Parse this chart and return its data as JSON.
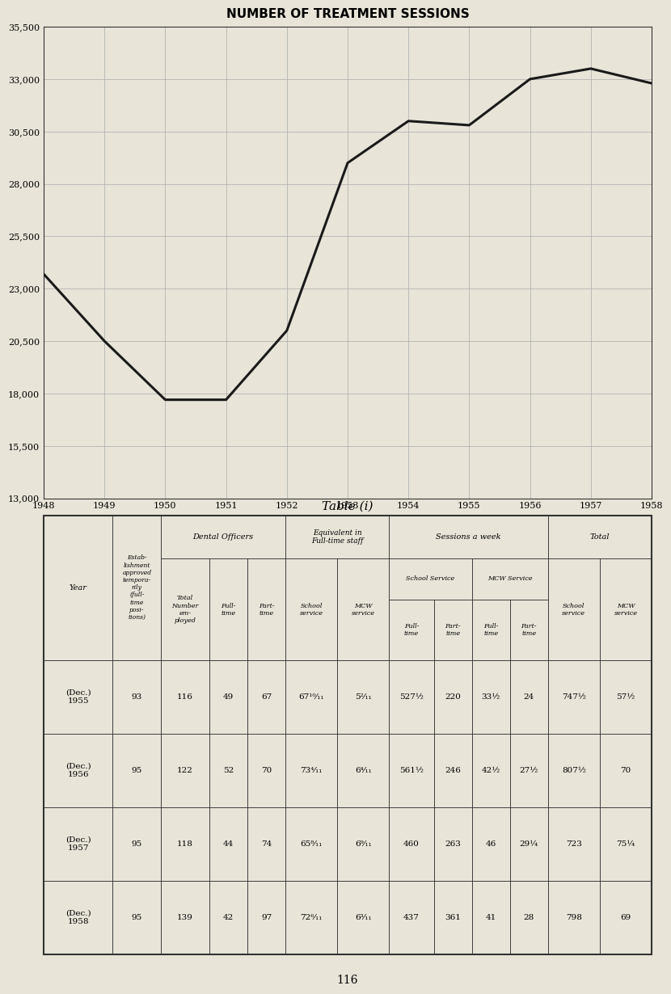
{
  "title": "NUMBER OF TREATMENT SESSIONS",
  "table_title": "Table (i)",
  "bg_color": "#e8e4d8",
  "line_color": "#1a1a1a",
  "line_width": 2.2,
  "years": [
    1948,
    1949,
    1950,
    1951,
    1952,
    1953,
    1954,
    1955,
    1956,
    1957,
    1958
  ],
  "values": [
    23700,
    20500,
    17700,
    17700,
    21000,
    29000,
    31000,
    30800,
    33000,
    33500,
    32800
  ],
  "yticks": [
    13000,
    15500,
    18000,
    20500,
    23000,
    25500,
    28000,
    30500,
    33000,
    35500
  ],
  "ylim": [
    13000,
    35500
  ],
  "xticks": [
    1948,
    1949,
    1950,
    1951,
    1952,
    1953,
    1954,
    1955,
    1956,
    1957,
    1958
  ],
  "page_number": "116",
  "table_data": [
    [
      "(Dec.)\n1955",
      "93",
      "116",
      "49",
      "67",
      "67¹⁰⁄₁₁",
      "5²⁄₁₁",
      "527½",
      "220",
      "33½",
      "24",
      "747½",
      "57½"
    ],
    [
      "(Dec.)\n1956",
      "95",
      "122",
      "52",
      "70",
      "73⁴⁄₁₁",
      "6⁴⁄₁₁",
      "561½",
      "246",
      "42½",
      "27½",
      "807½",
      "70"
    ],
    [
      "(Dec.)\n1957",
      "95",
      "118",
      "44",
      "74",
      "65⁸⁄₁₁",
      "6⁹⁄₁₁",
      "460",
      "263",
      "46",
      "29¼",
      "723",
      "75¼"
    ],
    [
      "(Dec.)\n1958",
      "95",
      "139",
      "42",
      "97",
      "72⁶⁄₁₁",
      "6³⁄₁₁",
      "437",
      "361",
      "41",
      "28",
      "798",
      "69"
    ]
  ]
}
